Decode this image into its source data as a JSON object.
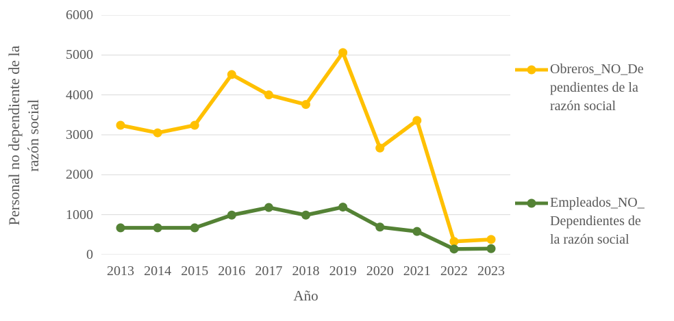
{
  "chart_data": {
    "type": "line",
    "title": "",
    "xlabel": "Año",
    "ylabel": "Personal no dependiente de la razón social",
    "ylabel_lines": [
      "Personal no dependiente de la",
      "razón social"
    ],
    "categories": [
      "2013",
      "2014",
      "2015",
      "2016",
      "2017",
      "2018",
      "2019",
      "2020",
      "2021",
      "2022",
      "2023"
    ],
    "ylim": [
      0,
      6000
    ],
    "ytick_step": 1000,
    "yticks": [
      0,
      1000,
      2000,
      3000,
      4000,
      5000,
      6000
    ],
    "grid": true,
    "legend_position": "right",
    "series": [
      {
        "name": "Obreros_NO_Dependientes de la razón social",
        "slug": "obreros-no-dependientes",
        "label_lines": [
          "Obreros_NO_De",
          "pendientes de la",
          "razón social"
        ],
        "color": "#FFC000",
        "values": [
          3240,
          3050,
          3240,
          4510,
          4000,
          3760,
          5060,
          2670,
          3360,
          330,
          380
        ]
      },
      {
        "name": "Empleados_NO_Dependientes de la razón social",
        "slug": "empleados-no-dependientes",
        "label_lines": [
          "Empleados_NO_",
          "Dependientes de",
          "la razón social"
        ],
        "color": "#548235",
        "values": [
          670,
          670,
          670,
          990,
          1180,
          990,
          1190,
          690,
          580,
          140,
          150
        ]
      }
    ],
    "styles": {
      "grid_color": "#D9D9D9",
      "text_color": "#595959",
      "background": "#FFFFFF"
    }
  }
}
